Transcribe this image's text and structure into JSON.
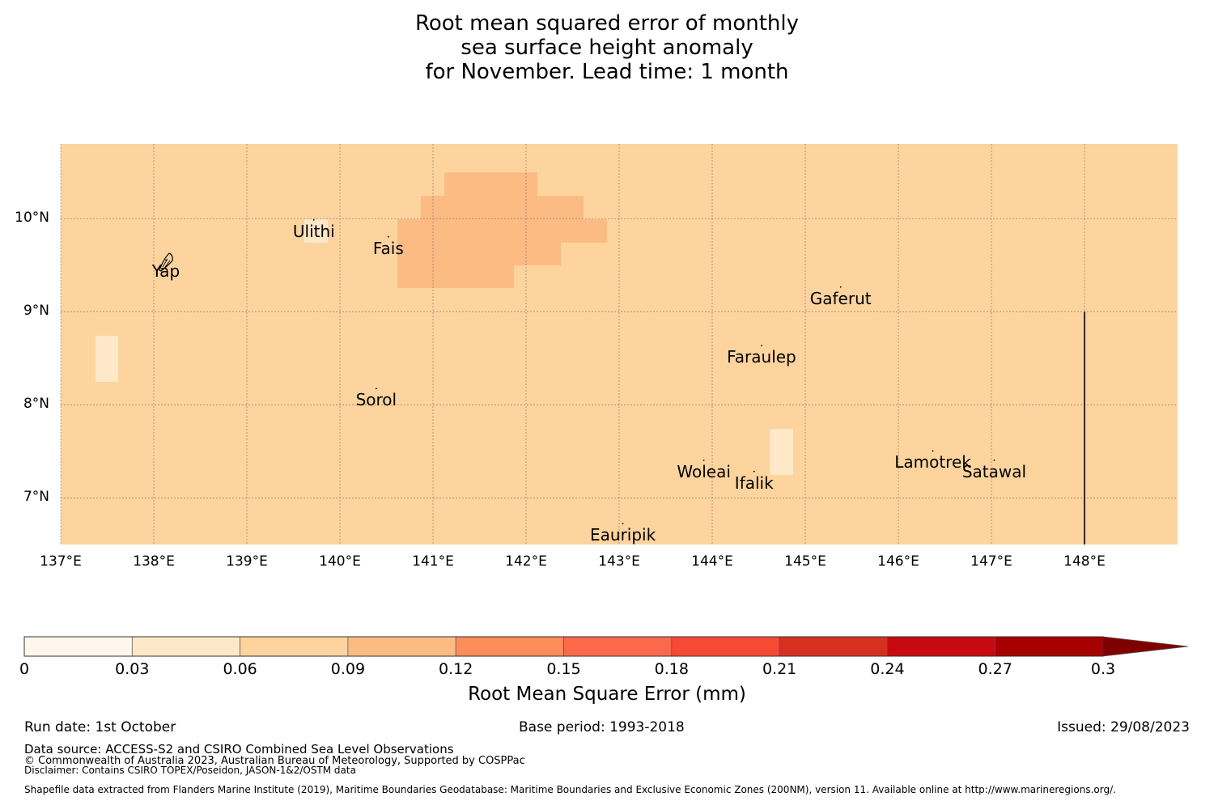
{
  "title": {
    "line1": "Root mean squared error of monthly",
    "line2": "sea surface height anomaly",
    "line3": "for November. Lead time: 1 month"
  },
  "map": {
    "background_color": "#fdd49e",
    "patch_color_high": "#fdbb84",
    "patch_color_low": "#fee8c8",
    "lon_range": [
      137,
      149
    ],
    "lat_range": [
      6.5,
      10.8
    ],
    "lon_ticks": [
      "137°E",
      "138°E",
      "139°E",
      "140°E",
      "141°E",
      "142°E",
      "143°E",
      "144°E",
      "145°E",
      "146°E",
      "147°E",
      "148°E"
    ],
    "lat_ticks": [
      "10°N",
      "9°N",
      "8°N",
      "7°N"
    ],
    "islands": [
      {
        "name": "Ulithi",
        "lon": 139.72,
        "lat": 9.95
      },
      {
        "name": "Fais",
        "lon": 140.52,
        "lat": 9.77
      },
      {
        "name": "Yap",
        "lon": 138.13,
        "lat": 9.52
      },
      {
        "name": "Gaferut",
        "lon": 145.38,
        "lat": 9.23
      },
      {
        "name": "Faraulep",
        "lon": 144.53,
        "lat": 8.6
      },
      {
        "name": "Sorol",
        "lon": 140.39,
        "lat": 8.14
      },
      {
        "name": "Woleai",
        "lon": 143.91,
        "lat": 7.37
      },
      {
        "name": "Ifalik",
        "lon": 144.45,
        "lat": 7.25
      },
      {
        "name": "Lamotrek",
        "lon": 146.37,
        "lat": 7.47
      },
      {
        "name": "Satawal",
        "lon": 147.03,
        "lat": 7.37
      },
      {
        "name": "Eauripik",
        "lon": 143.04,
        "lat": 6.69
      }
    ],
    "boundary_lon": 148.0,
    "boundary_lat_top": 9.0
  },
  "colorbar": {
    "title": "Root Mean Square Error (mm)",
    "ticks": [
      "0",
      "0.03",
      "0.06",
      "0.09",
      "0.12",
      "0.15",
      "0.18",
      "0.21",
      "0.24",
      "0.27",
      "0.3"
    ],
    "colors": [
      "#fff7ec",
      "#fee8c8",
      "#fdd49e",
      "#fdbb84",
      "#fc8d59",
      "#fc6a4b",
      "#f74a35",
      "#d7301f",
      "#c70a12",
      "#a60000"
    ],
    "extend_color": "#7f0000"
  },
  "footer": {
    "run_date": "Run date: 1st October",
    "base_period": "Base period: 1993-2018",
    "issued": "Issued: 29/08/2023",
    "data_source": "Data source: ACCESS-S2 and CSIRO Combined Sea Level Observations",
    "copyright": "© Commonwealth of Australia 2023, Australian Bureau of Meteorology, Supported by COSPPac",
    "disclaimer": "Disclaimer: Contains CSIRO TOPEX/Poseidon, JASON-1&2/OSTM data",
    "shapefile": "Shapefile data extracted from Flanders Marine Institute (2019), Maritime Boundaries Geodatabase: Maritime Boundaries and Exclusive Economic Zones (200NM), version 11. Available online at http://www.marineregions.org/."
  }
}
